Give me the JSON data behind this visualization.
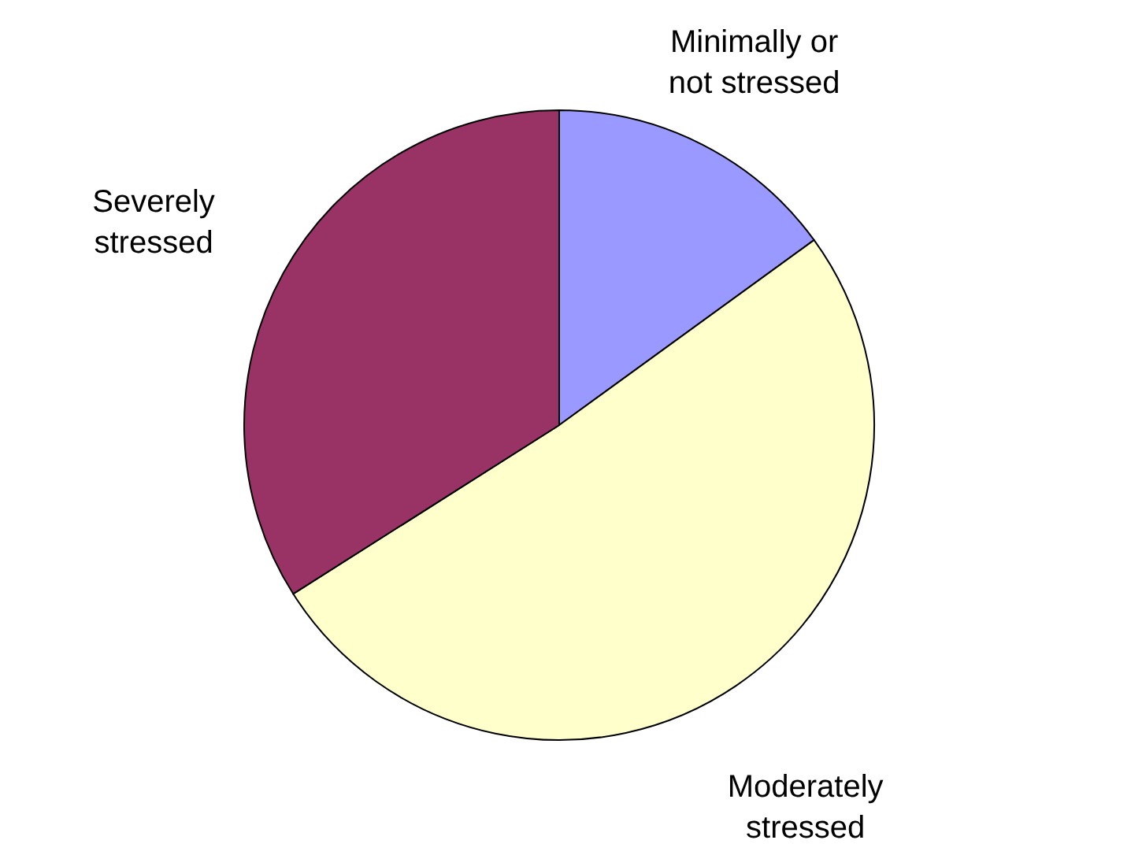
{
  "chart_data": {
    "type": "pie",
    "categories": [
      "Minimally or not stressed",
      "Moderately stressed",
      "Severely stressed"
    ],
    "values": [
      15,
      51,
      34
    ],
    "colors": [
      "#9999ff",
      "#ffffcc",
      "#993366"
    ],
    "legend": false
  }
}
